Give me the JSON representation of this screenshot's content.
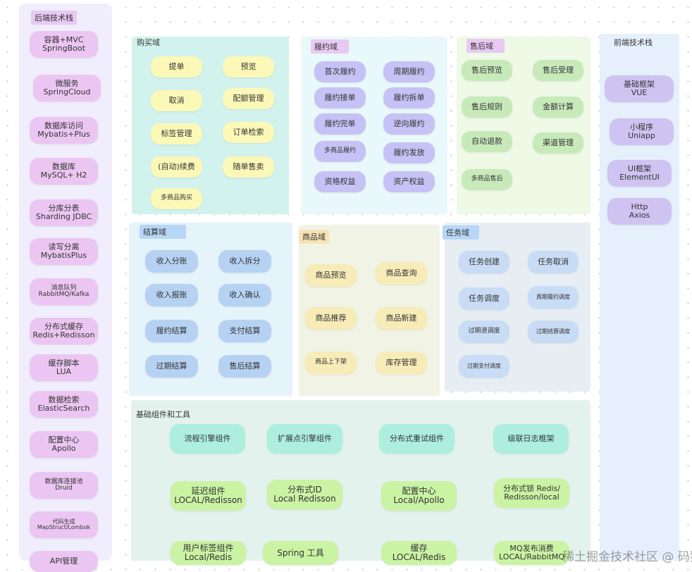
{
  "backend": {
    "title": "后端技术栈",
    "items": [
      "容器+MVC\nSpringBoot",
      "微服务\nSpringCloud",
      "数据库访问\nMybatis+Plus",
      "数据库\nMySQL+ H2",
      "分库分表\nSharding JDBC",
      "读写分离\nMybatisPlus",
      "消息队列\nRabbitMQ/Kafka",
      "分布式缓存\nRedis+Redisson",
      "缓存脚本\nLUA",
      "数据检索\nElasticSearch",
      "配置中心\nApollo",
      "数据库连接池\nDruid",
      "代码生成\nMapStruct/Lombok",
      "API管理"
    ]
  },
  "frontend": {
    "title": "前端技术栈",
    "items": [
      "基础框架\nVUE",
      "小程序\nUniapp",
      "UI框架\nElementUI",
      "Http\nAxios"
    ]
  },
  "purchase": {
    "title": "购买域",
    "items": [
      "提单",
      "预览",
      "取消",
      "配额管理",
      "标签管理",
      "订单检索",
      "(自动)续费",
      "随单售卖",
      "多商品购买"
    ]
  },
  "fulfill": {
    "title": "履约域",
    "items": [
      "首次履约",
      "周期履约",
      "履约接单",
      "履约拆单",
      "履约完单",
      "逆向履约",
      "多商品履约",
      "履约发放",
      "资格权益",
      "资产权益"
    ]
  },
  "aftersale": {
    "title": "售后域",
    "items": [
      "售后预览",
      "售后受理",
      "售后规则",
      "金额计算",
      "自动退款",
      "渠道管理",
      "多商品售后"
    ]
  },
  "settle": {
    "title": "结算域",
    "items": [
      "收入分账",
      "收入拆分",
      "收入报账",
      "收入确认",
      "履约结算",
      "支付结算",
      "过期结算",
      "售后结算"
    ]
  },
  "product": {
    "title": "商品域",
    "items": [
      "商品预览",
      "商品查询",
      "商品推荐",
      "商品新建",
      "商品上下架",
      "库存管理"
    ]
  },
  "task": {
    "title": "任务域",
    "items": [
      "任务创建",
      "任务取消",
      "任务调度",
      "周期履约调度",
      "过期退调度",
      "过期结算调度",
      "过期支付调度"
    ]
  },
  "base": {
    "title": "基础组件和工具",
    "items": [
      "流程引擎组件",
      "扩展点引擎组件",
      "分布式重试组件",
      "级联日志框架",
      "延迟组件\nLOCAL/Redisson",
      "分布式ID\nLocal Redisson",
      "配置中心\nLocal/Apollo",
      "分布式锁 Redis/\nRedisson/local",
      "用户标签组件\nLocal/Redis",
      "Spring 工具",
      "缓存\nLOCAL/Redis",
      "MQ发布消费\nLOCAL/RabbitMQ"
    ]
  },
  "watermark": "稀土掘金技术社区 @ 码猿"
}
